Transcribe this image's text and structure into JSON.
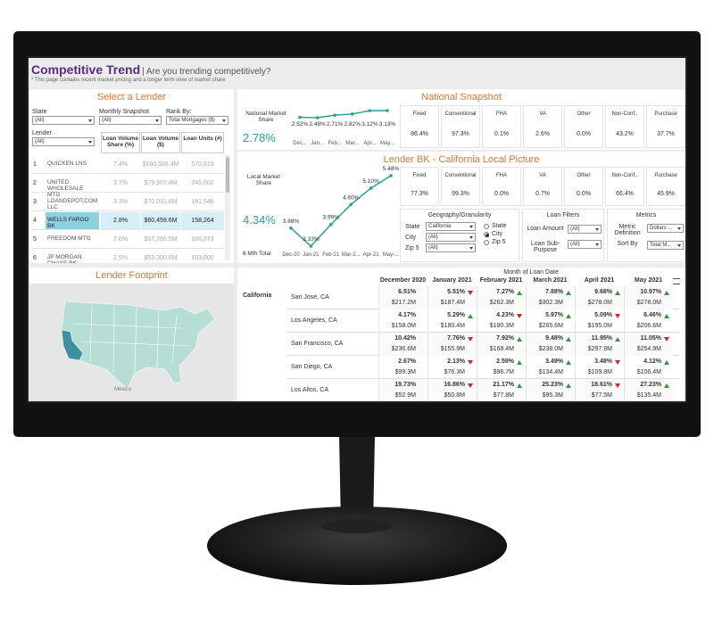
{
  "header": {
    "title": "Competitive Trend",
    "tagline": "| Are you trending competitively?",
    "note": "* This page contains recent market pricing and a longer term view of market share"
  },
  "lender_panel": {
    "title": "Select a Lender",
    "filters": [
      {
        "label": "State",
        "value": "(All)"
      },
      {
        "label": "Monthly Snapshot",
        "value": "(All)"
      },
      {
        "label": "Rank By:",
        "value": "Total Mortgages ($)"
      },
      {
        "label": "Lender",
        "value": "(All)"
      }
    ],
    "columns": [
      "Loan Volume Share (%)",
      "Loan Volume ($)",
      "Loan Units (#)"
    ],
    "rows": [
      {
        "rank": "1",
        "name": "QUICKEN LNS",
        "share": "7.4%",
        "volume": "$160,588.4M",
        "units": "570,815"
      },
      {
        "rank": "2",
        "name": "UNITED WHOLESALE MTG",
        "share": "3.7%",
        "volume": "$79,967.4M",
        "units": "245,000"
      },
      {
        "rank": "3",
        "name": "LOANDEPOT.COM LLC",
        "share": "3.3%",
        "volume": "$70,031.8M",
        "units": "191,548"
      },
      {
        "rank": "4",
        "name": "WELLS FARGO BK",
        "share": "2.8%",
        "volume": "$60,459.6M",
        "units": "158,264",
        "selected": true
      },
      {
        "rank": "5",
        "name": "FREEDOM MTG",
        "share": "2.6%",
        "volume": "$57,266.5M",
        "units": "186,873"
      },
      {
        "rank": "6",
        "name": "JP MORGAN CHASE BK",
        "share": "2.5%",
        "volume": "$53,300.6M",
        "units": "103,000"
      }
    ]
  },
  "national": {
    "title": "National Snapshot",
    "share_label": "National Market Share",
    "share_value": "2.78%",
    "chart": {
      "values": [
        2.52,
        2.48,
        2.71,
        2.82,
        3.12,
        3.13
      ],
      "value_labels": [
        "2.52%",
        "2.48%",
        "2.71%",
        "2.82%",
        "3.12%",
        "3.13%"
      ],
      "x_labels": [
        "Dec...",
        "Jan...",
        "Feb...",
        "Mar...",
        "Apr...",
        "May..."
      ],
      "color": "#2aa198"
    },
    "cards": [
      {
        "label": "Fixed",
        "value": "86.4%"
      },
      {
        "label": "Conventional",
        "value": "97.3%"
      },
      {
        "label": "FHA",
        "value": "0.1%"
      },
      {
        "label": "VA",
        "value": "2.6%"
      },
      {
        "label": "Other",
        "value": "0.0%"
      },
      {
        "label": "Non-Conf..",
        "value": "43.2%"
      },
      {
        "label": "Purchase",
        "value": "37.7%"
      }
    ]
  },
  "local": {
    "title": "Lender BK - California Local Picture",
    "share_label": "Local Market Share",
    "share_value": "4.34%",
    "total_label": "6 Mth Total",
    "chart": {
      "values": [
        3.88,
        3.33,
        3.99,
        4.6,
        5.1,
        5.48
      ],
      "value_labels": [
        "3.88%",
        "3.33%",
        "3.99%",
        "4.60%",
        "5.10%",
        "5.48%"
      ],
      "x_labels": [
        "Dec-20",
        "Jan-21",
        "Feb-21",
        "Mar-2...",
        "Apr-21",
        "May-..."
      ],
      "color": "#2aa198"
    },
    "cards": [
      {
        "label": "Fixed",
        "value": "77.3%"
      },
      {
        "label": "Conventional",
        "value": "99.3%"
      },
      {
        "label": "FHA",
        "value": "0.0%"
      },
      {
        "label": "VA",
        "value": "0.7%"
      },
      {
        "label": "Other",
        "value": "0.0%"
      },
      {
        "label": "Non-Conf..",
        "value": "66.4%"
      },
      {
        "label": "Purchase",
        "value": "45.9%"
      }
    ],
    "geography": {
      "title": "Geography/Granularity",
      "fields": [
        {
          "label": "State",
          "value": "California"
        },
        {
          "label": "City",
          "value": "(All)"
        },
        {
          "label": "Zip 5",
          "value": "(All)"
        }
      ],
      "options": [
        {
          "label": "State"
        },
        {
          "label": "City",
          "checked": true
        },
        {
          "label": "Zip 5"
        }
      ]
    },
    "loan_filters": {
      "title": "Loan Filters",
      "fields": [
        {
          "label": "Loan Amount",
          "value": "(All)"
        },
        {
          "label": "Loan Sub-Purpose",
          "value": "(All)"
        }
      ]
    },
    "metrics": {
      "title": "Metrics",
      "fields": [
        {
          "label": "Metric Definition",
          "value": "Dollars ..."
        },
        {
          "label": "Sort By",
          "value": "Total M..."
        }
      ]
    }
  },
  "footprint": {
    "title": "Lender Footprint",
    "map_label": "Mexico"
  },
  "table": {
    "header": "Month of Loan Date",
    "months": [
      "December 2020",
      "January 2021",
      "February 2021",
      "March 2021",
      "April 2021",
      "May 2021"
    ],
    "region": "California",
    "rows": [
      {
        "city": "San Jose, CA",
        "cells": [
          {
            "share": "6.51%",
            "volume": "$217.2M"
          },
          {
            "share": "5.51%",
            "trend": "down",
            "volume": "$187.4M"
          },
          {
            "share": "7.27%",
            "trend": "up",
            "volume": "$262.3M"
          },
          {
            "share": "7.88%",
            "trend": "up",
            "volume": "$302.3M"
          },
          {
            "share": "9.68%",
            "trend": "up",
            "volume": "$278.0M"
          },
          {
            "share": "10.97%",
            "trend": "up",
            "volume": "$278.0M"
          }
        ]
      },
      {
        "city": "Los Angeles, CA",
        "cells": [
          {
            "share": "4.17%",
            "volume": "$158.0M"
          },
          {
            "share": "5.29%",
            "trend": "up",
            "volume": "$180.4M"
          },
          {
            "share": "4.23%",
            "trend": "down",
            "volume": "$180.3M"
          },
          {
            "share": "5.97%",
            "trend": "up",
            "volume": "$265.6M"
          },
          {
            "share": "5.09%",
            "trend": "down",
            "volume": "$195.0M"
          },
          {
            "share": "6.46%",
            "trend": "up",
            "volume": "$206.6M"
          }
        ]
      },
      {
        "city": "San Francisco, CA",
        "cells": [
          {
            "share": "10.42%",
            "volume": "$236.6M"
          },
          {
            "share": "7.76%",
            "trend": "down",
            "volume": "$155.9M"
          },
          {
            "share": "7.92%",
            "trend": "up",
            "volume": "$168.4M"
          },
          {
            "share": "9.48%",
            "trend": "up",
            "volume": "$238.0M"
          },
          {
            "share": "11.95%",
            "trend": "up",
            "volume": "$297.9M"
          },
          {
            "share": "11.05%",
            "trend": "down",
            "volume": "$254.9M"
          }
        ]
      },
      {
        "city": "San Diego, CA",
        "cells": [
          {
            "share": "2.67%",
            "volume": "$99.3M"
          },
          {
            "share": "2.13%",
            "trend": "down",
            "volume": "$76.3M"
          },
          {
            "share": "2.59%",
            "trend": "up",
            "volume": "$96.7M"
          },
          {
            "share": "3.49%",
            "trend": "up",
            "volume": "$134.4M"
          },
          {
            "share": "3.48%",
            "trend": "down",
            "volume": "$109.8M"
          },
          {
            "share": "4.12%",
            "trend": "up",
            "volume": "$106.4M"
          }
        ]
      },
      {
        "city": "Los Altos, CA",
        "cells": [
          {
            "share": "19.73%",
            "volume": "$52.9M"
          },
          {
            "share": "16.86%",
            "trend": "down",
            "volume": "$50.8M"
          },
          {
            "share": "21.17%",
            "trend": "up",
            "volume": "$77.8M"
          },
          {
            "share": "25.23%",
            "trend": "up",
            "volume": "$95.3M"
          },
          {
            "share": "18.61%",
            "trend": "down",
            "volume": "$77.5M"
          },
          {
            "share": "27.23%",
            "trend": "up",
            "volume": "$135.4M"
          }
        ]
      }
    ]
  }
}
